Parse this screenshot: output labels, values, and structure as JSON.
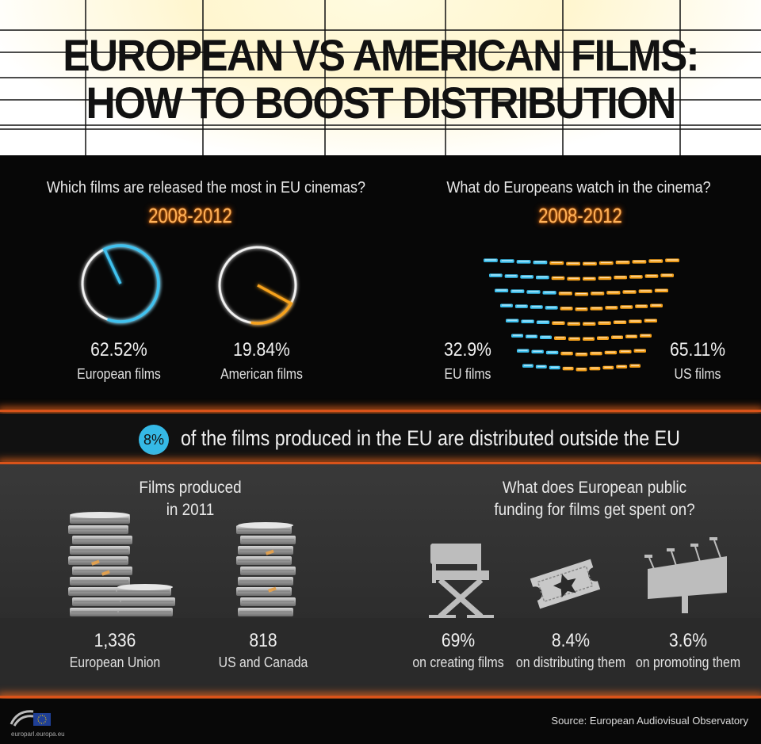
{
  "header": {
    "title_line1": "EUROPEAN VS AMERICAN FILMS:",
    "title_line2": "HOW TO BOOST DISTRIBUTION"
  },
  "released": {
    "question": "Which films are released the most in EU cinemas?",
    "period": "2008-2012",
    "items": [
      {
        "percent": "62.52%",
        "label": "European films",
        "fraction": 0.6252,
        "color": "#3fc2f0"
      },
      {
        "percent": "19.84%",
        "label": "American films",
        "fraction": 0.1984,
        "color": "#f7a21b"
      }
    ]
  },
  "watched": {
    "question": "What do Europeans watch in the cinema?",
    "period": "2008-2012",
    "eu": {
      "percent": "32.9%",
      "label": "EU films",
      "fraction": 0.329,
      "color": "#3fc2f0"
    },
    "us": {
      "percent": "65.11%",
      "label": "US films",
      "fraction": 0.6511,
      "color": "#f7a21b"
    }
  },
  "distribution": {
    "badge": "8%",
    "text": "of the films produced in the EU are distributed outside the EU"
  },
  "produced": {
    "title_line1": "Films produced",
    "title_line2": "in 2011",
    "items": [
      {
        "value": "1,336",
        "label": "European Union"
      },
      {
        "value": "818",
        "label": "US and Canada"
      }
    ]
  },
  "funding": {
    "question_line1": "What does European public",
    "question_line2": "funding for films get spent on?",
    "items": [
      {
        "value": "69%",
        "label": "on creating films",
        "icon": "directors-chair-icon"
      },
      {
        "value": "8.4%",
        "label": "on distributing them",
        "icon": "ticket-star-icon"
      },
      {
        "value": "3.6%",
        "label": "on promoting them",
        "icon": "billboard-icon"
      }
    ]
  },
  "footer": {
    "logo_caption": "europarl.europa.eu",
    "source": "Source: European Audiovisual Observatory"
  }
}
